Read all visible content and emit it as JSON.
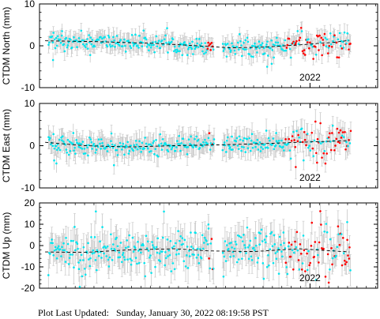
{
  "footer": {
    "label": "Plot Last Updated:",
    "value": "Sunday, January 30, 2022 08:19:58 PST"
  },
  "colors": {
    "main_points": "#00e5ee",
    "recent_points": "#ff0000",
    "error_bars": "#c8c8c8",
    "trend": "#000000"
  },
  "chart_data": [
    {
      "type": "scatter",
      "ylabel": "CTDM North (mm)",
      "ylim": [
        -10,
        10
      ],
      "yticks": [
        -10,
        0,
        10
      ],
      "xlim": [
        2019.6,
        2022.6
      ],
      "xticks": [
        2022
      ],
      "xtick_labels": [
        "2022"
      ],
      "trend": [
        [
          2019.65,
          1.2
        ],
        [
          2020.1,
          1.0
        ],
        [
          2020.6,
          0.6
        ],
        [
          2021.0,
          0.0
        ],
        [
          2021.3,
          -0.5
        ],
        [
          2021.6,
          -0.3
        ],
        [
          2021.9,
          0.2
        ],
        [
          2022.2,
          0.8
        ],
        [
          2022.35,
          1.3
        ]
      ],
      "noise_sd": 1.0,
      "error_bar": 1.8,
      "outliers": [
        [
          2019.72,
          -3.4
        ],
        [
          2019.8,
          3.5
        ],
        [
          2021.62,
          -5.0
        ],
        [
          2021.66,
          -4.3
        ],
        [
          2020.05,
          -2.2
        ]
      ],
      "gap": [
        2021.15,
        2021.22
      ],
      "recent_start": 2021.78,
      "recent_extra_sd": 0.8
    },
    {
      "type": "scatter",
      "ylabel": "CTDM East (mm)",
      "ylim": [
        -10,
        10
      ],
      "yticks": [
        -10,
        0,
        10
      ],
      "xlim": [
        2019.6,
        2022.6
      ],
      "xticks": [
        2022
      ],
      "xtick_labels": [
        "2022"
      ],
      "trend": [
        [
          2019.65,
          0.8
        ],
        [
          2020.0,
          0.0
        ],
        [
          2020.4,
          -0.3
        ],
        [
          2020.8,
          0.0
        ],
        [
          2021.2,
          0.2
        ],
        [
          2021.6,
          0.5
        ],
        [
          2021.9,
          0.8
        ],
        [
          2022.35,
          1.2
        ]
      ],
      "noise_sd": 1.1,
      "error_bar": 2.2,
      "outliers": [
        [
          2019.73,
          -3.5
        ],
        [
          2019.75,
          -4.2
        ],
        [
          2021.7,
          3.0
        ],
        [
          2019.9,
          3.0
        ]
      ],
      "gap": [
        2021.15,
        2021.22
      ],
      "recent_start": 2021.78,
      "recent_extra_sd": 0.9
    },
    {
      "type": "scatter",
      "ylabel": "CTDM Up (mm)",
      "ylim": [
        -20,
        20
      ],
      "yticks": [
        -20,
        -10,
        0,
        10,
        20
      ],
      "xlim": [
        2019.6,
        2022.6
      ],
      "xticks": [
        2022
      ],
      "xtick_labels": [
        "2022"
      ],
      "trend": [
        [
          2019.65,
          -3.0
        ],
        [
          2020.0,
          -3.2
        ],
        [
          2020.4,
          -2.0
        ],
        [
          2020.8,
          -1.5
        ],
        [
          2021.1,
          -2.5
        ],
        [
          2021.5,
          -2.8
        ],
        [
          2021.9,
          -1.5
        ],
        [
          2022.35,
          -3.0
        ]
      ],
      "noise_sd": 5.0,
      "error_bar": 6.0,
      "outliers": [
        [
          2022.33,
          11.0
        ],
        [
          2021.1,
          8.0
        ],
        [
          2020.1,
          16.0
        ],
        [
          2019.95,
          -11.0
        ]
      ],
      "gap": [
        2021.15,
        2021.22
      ],
      "recent_start": 2021.78,
      "recent_extra_sd": 2.0
    }
  ]
}
